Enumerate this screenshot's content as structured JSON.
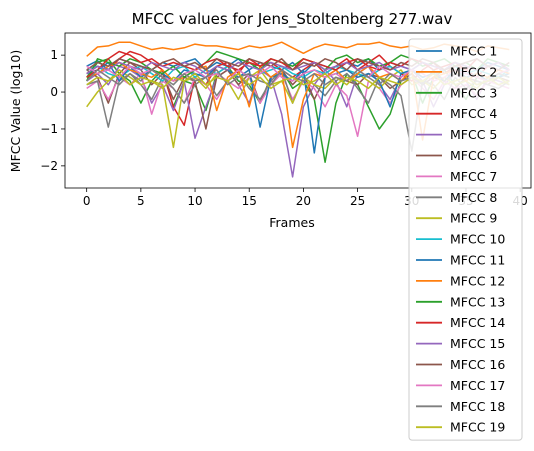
{
  "chart_data": {
    "type": "line",
    "title": "MFCC values for Jens_Stoltenberg 277.wav",
    "xlabel": "Frames",
    "ylabel": "MFCC Value (log10)",
    "xlim": [
      -2,
      41
    ],
    "ylim": [
      -2.6,
      1.6
    ],
    "xticks": [
      0,
      5,
      10,
      15,
      20,
      25,
      30,
      35,
      40
    ],
    "yticks": [
      -2,
      -1,
      0,
      1
    ],
    "grid": false,
    "legend_position": "right",
    "x": [
      0,
      1,
      2,
      3,
      4,
      5,
      6,
      7,
      8,
      9,
      10,
      11,
      12,
      13,
      14,
      15,
      16,
      17,
      18,
      19,
      20,
      21,
      22,
      23,
      24,
      25,
      26,
      27,
      28,
      29,
      30,
      31,
      32,
      33,
      34,
      35,
      36,
      37,
      38,
      39
    ],
    "series": [
      {
        "name": "MFCC 1",
        "color": "#1f77b4",
        "values": [
          0.7,
          0.85,
          0.6,
          0.9,
          0.8,
          0.7,
          0.6,
          0.8,
          0.7,
          0.8,
          0.9,
          0.6,
          0.8,
          0.7,
          0.9,
          0.6,
          0.8,
          0.7,
          0.6,
          0.8,
          0.5,
          0.8,
          0.7,
          0.6,
          0.8,
          0.7,
          0.9,
          0.6,
          0.8,
          0.7,
          0.6,
          0.8,
          0.7,
          0.6,
          0.8,
          0.7,
          0.6,
          0.8,
          0.7,
          0.6
        ]
      },
      {
        "name": "MFCC 2",
        "color": "#ff7f0e",
        "values": [
          0.97,
          1.22,
          1.25,
          1.35,
          1.35,
          1.25,
          1.15,
          1.2,
          1.15,
          1.2,
          1.3,
          1.25,
          1.25,
          1.2,
          1.15,
          1.25,
          1.2,
          1.25,
          1.35,
          1.2,
          1.05,
          1.2,
          1.3,
          1.25,
          1.2,
          1.3,
          1.3,
          1.35,
          1.25,
          1.2,
          1.25,
          1.15,
          1.2,
          1.3,
          1.25,
          1.2,
          1.1,
          1.25,
          1.2,
          1.15
        ]
      },
      {
        "name": "MFCC 3",
        "color": "#2ca02c",
        "values": [
          0.4,
          0.8,
          0.9,
          0.5,
          0.3,
          -0.3,
          0.3,
          0.6,
          -0.4,
          0.3,
          0.2,
          -0.5,
          0.5,
          0.7,
          0.3,
          0.2,
          -0.3,
          0.4,
          0.6,
          0.1,
          0.3,
          -0.2,
          -1.9,
          -0.3,
          0.5,
          0.2,
          -0.4,
          -1.0,
          -0.6,
          0.3,
          0.5,
          -0.3,
          0.4,
          0.6,
          0.2,
          -0.2,
          0.4,
          0.3,
          0.5,
          0.4
        ]
      },
      {
        "name": "MFCC 4",
        "color": "#d62728",
        "values": [
          0.5,
          0.7,
          0.6,
          0.9,
          1.1,
          1.0,
          0.8,
          0.6,
          -0.4,
          -0.9,
          0.4,
          0.2,
          0.7,
          0.8,
          0.5,
          0.9,
          0.7,
          0.8,
          0.6,
          0.4,
          0.6,
          0.8,
          0.5,
          0.7,
          0.9,
          0.6,
          0.8,
          1.0,
          0.7,
          0.5,
          0.3,
          0.6,
          0.8,
          0.5,
          0.7,
          0.6,
          0.4,
          0.7,
          0.6,
          0.5
        ]
      },
      {
        "name": "MFCC 5",
        "color": "#9467bd",
        "values": [
          0.3,
          0.5,
          0.2,
          0.7,
          0.6,
          0.4,
          -0.3,
          0.2,
          -0.5,
          0.3,
          -1.25,
          -0.4,
          0.4,
          0.6,
          0.2,
          -0.3,
          0.6,
          0.4,
          -0.6,
          -2.3,
          -0.4,
          0.2,
          0.6,
          0.3,
          -0.4,
          0.5,
          0.7,
          0.2,
          -0.2,
          0.4,
          0.6,
          0.3,
          -0.4,
          0.2,
          0.5,
          0.3,
          -0.2,
          0.4,
          0.3,
          0.2
        ]
      },
      {
        "name": "MFCC 6",
        "color": "#8c564b",
        "values": [
          0.6,
          0.4,
          -0.3,
          0.5,
          0.8,
          0.6,
          0.2,
          0.5,
          -0.2,
          0.4,
          0.3,
          -1.0,
          0.4,
          0.6,
          0.2,
          0.5,
          -0.3,
          0.4,
          0.6,
          0.2,
          0.5,
          -0.2,
          0.4,
          0.6,
          0.3,
          0.2,
          0.5,
          0.4,
          0.1,
          0.3,
          0.5,
          0.2,
          0.4,
          0.3,
          0.1,
          0.4,
          0.3,
          0.2,
          0.4,
          0.3
        ]
      },
      {
        "name": "MFCC 7",
        "color": "#e377c2",
        "values": [
          0.1,
          0.3,
          -0.2,
          0.4,
          0.2,
          0.5,
          -0.6,
          0.3,
          0.1,
          -0.3,
          0.4,
          0.2,
          -0.2,
          0.3,
          0.1,
          0.4,
          -0.3,
          0.2,
          0.5,
          -0.2,
          0.3,
          0.1,
          -0.4,
          0.2,
          -0.1,
          -1.2,
          0.3,
          0.1,
          -0.3,
          0.2,
          0.4,
          0.1,
          -0.2,
          0.3,
          0.1,
          0.2,
          -0.1,
          0.3,
          0.2,
          0.1
        ]
      },
      {
        "name": "MFCC 8",
        "color": "#7f7f7f",
        "values": [
          0.2,
          0.3,
          -0.95,
          0.3,
          0.5,
          0.2,
          -0.2,
          0.4,
          0.1,
          -0.3,
          0.2,
          0.4,
          -0.1,
          0.3,
          0.5,
          0.1,
          -0.2,
          0.3,
          0.6,
          -0.3,
          0.4,
          0.2,
          -0.1,
          0.3,
          0.5,
          0.1,
          -0.3,
          0.4,
          0.2,
          -0.1,
          -1.6,
          0.3,
          0.2,
          -0.2,
          0.4,
          0.1,
          0.3,
          0.2,
          0.1,
          0.3
        ]
      },
      {
        "name": "MFCC 9",
        "color": "#bcbd22",
        "values": [
          -0.4,
          0.0,
          0.3,
          0.6,
          0.4,
          0.2,
          0.3,
          0.2,
          -1.5,
          0.3,
          0.4,
          0.1,
          0.5,
          0.3,
          -0.2,
          0.4,
          0.6,
          0.2,
          0.3,
          -0.3,
          0.4,
          0.2,
          0.1,
          0.4,
          0.2,
          0.5,
          0.3,
          0.1,
          0.4,
          0.6,
          0.2,
          0.3,
          0.1,
          0.4,
          0.2,
          0.3,
          0.1,
          0.4,
          0.2,
          0.3
        ]
      },
      {
        "name": "MFCC 10",
        "color": "#17becf",
        "values": [
          0.6,
          0.7,
          0.5,
          0.4,
          0.6,
          0.7,
          0.5,
          0.3,
          0.6,
          0.7,
          0.4,
          0.6,
          0.5,
          0.7,
          0.6,
          0.4,
          0.5,
          0.6,
          0.7,
          0.5,
          0.4,
          0.6,
          0.5,
          0.7,
          0.6,
          0.5,
          0.4,
          0.6,
          0.7,
          0.5,
          0.6,
          0.4,
          0.5,
          0.6,
          0.7,
          0.5,
          0.6,
          0.5,
          0.4,
          0.6
        ]
      },
      {
        "name": "MFCC 11",
        "color": "#1f77b4",
        "values": [
          0.5,
          0.6,
          0.8,
          0.3,
          0.7,
          0.4,
          0.6,
          0.5,
          0.3,
          0.6,
          0.5,
          0.4,
          0.7,
          0.6,
          0.4,
          0.6,
          -0.95,
          0.4,
          0.5,
          0.3,
          0.6,
          -1.65,
          0.4,
          0.5,
          0.6,
          0.4,
          0.5,
          0.3,
          -0.4,
          0.5,
          0.6,
          0.4,
          0.5,
          0.3,
          0.6,
          0.4,
          0.5,
          0.3,
          0.4,
          0.5
        ]
      },
      {
        "name": "MFCC 12",
        "color": "#ff7f0e",
        "values": [
          0.4,
          0.5,
          0.7,
          0.8,
          0.6,
          0.5,
          0.4,
          0.6,
          0.3,
          0.4,
          0.6,
          0.7,
          -0.5,
          0.4,
          0.6,
          -0.4,
          0.7,
          0.4,
          0.6,
          -1.5,
          -0.2,
          0.5,
          0.4,
          0.6,
          0.3,
          0.5,
          0.7,
          0.4,
          0.5,
          0.3,
          0.6,
          -1.3,
          0.4,
          0.5,
          0.6,
          0.3,
          0.5,
          0.4,
          0.6,
          0.5
        ]
      },
      {
        "name": "MFCC 13",
        "color": "#2ca02c",
        "values": [
          0.3,
          0.9,
          0.8,
          0.7,
          0.9,
          0.8,
          0.6,
          0.5,
          0.7,
          0.4,
          0.6,
          0.8,
          1.1,
          1.0,
          0.9,
          0.8,
          0.6,
          0.9,
          0.8,
          0.7,
          0.9,
          0.8,
          0.6,
          0.9,
          1.0,
          0.8,
          0.9,
          0.7,
          0.8,
          1.0,
          0.9,
          0.7,
          0.8,
          0.9,
          0.7,
          0.8,
          0.6,
          0.9,
          0.8,
          0.7
        ]
      },
      {
        "name": "MFCC 14",
        "color": "#d62728",
        "values": [
          0.4,
          0.6,
          0.9,
          1.1,
          1.0,
          0.8,
          0.9,
          0.7,
          0.8,
          0.7,
          0.6,
          0.8,
          0.9,
          0.7,
          0.6,
          0.8,
          0.7,
          0.9,
          0.8,
          0.6,
          0.9,
          0.8,
          0.7,
          0.6,
          0.8,
          0.9,
          0.7,
          0.6,
          0.8,
          0.7,
          0.9,
          0.8,
          0.6,
          0.7,
          0.8,
          0.6,
          0.9,
          0.7,
          0.8,
          0.6
        ]
      },
      {
        "name": "MFCC 15",
        "color": "#9467bd",
        "values": [
          0.5,
          0.7,
          0.6,
          0.8,
          0.7,
          0.6,
          0.8,
          0.7,
          0.6,
          0.8,
          0.7,
          0.5,
          0.7,
          0.6,
          0.8,
          0.7,
          0.6,
          0.8,
          0.7,
          0.6,
          0.7,
          0.8,
          0.6,
          0.7,
          0.8,
          0.6,
          0.7,
          0.8,
          0.6,
          0.7,
          0.6,
          0.8,
          0.7,
          0.6,
          0.8,
          0.7,
          0.6,
          0.7,
          0.8,
          0.6
        ]
      },
      {
        "name": "MFCC 16",
        "color": "#8c564b",
        "values": [
          0.6,
          0.8,
          0.7,
          0.9,
          0.8,
          0.7,
          0.6,
          0.8,
          0.9,
          0.7,
          0.8,
          0.6,
          0.9,
          0.8,
          0.7,
          0.9,
          0.8,
          0.7,
          0.9,
          0.6,
          0.8,
          0.7,
          0.9,
          0.8,
          0.6,
          0.9,
          0.8,
          0.7,
          0.6,
          0.8,
          0.7,
          0.9,
          0.8,
          0.6,
          0.7,
          0.8,
          0.9,
          0.7,
          0.6,
          0.8
        ]
      },
      {
        "name": "MFCC 17",
        "color": "#e377c2",
        "values": [
          0.7,
          0.5,
          0.6,
          0.4,
          0.7,
          0.5,
          0.6,
          0.4,
          0.3,
          0.5,
          0.6,
          0.4,
          0.5,
          0.3,
          0.6,
          0.4,
          0.5,
          0.7,
          0.4,
          0.3,
          0.5,
          0.6,
          0.4,
          0.5,
          0.3,
          0.6,
          0.4,
          0.7,
          0.5,
          0.4,
          0.6,
          0.5,
          0.3,
          0.4,
          0.6,
          0.5,
          0.4,
          0.3,
          0.5,
          0.6
        ]
      },
      {
        "name": "MFCC 18",
        "color": "#7f7f7f",
        "values": [
          0.3,
          0.6,
          0.4,
          0.2,
          0.5,
          0.3,
          0.6,
          0.4,
          0.2,
          0.5,
          0.3,
          0.4,
          0.6,
          0.2,
          0.4,
          0.5,
          0.3,
          0.2,
          0.6,
          0.4,
          0.3,
          0.5,
          0.2,
          0.4,
          0.3,
          0.6,
          0.4,
          0.2,
          0.5,
          0.3,
          0.4,
          0.2,
          0.6,
          0.3,
          0.5,
          0.4,
          0.2,
          0.3,
          0.5,
          0.4
        ]
      },
      {
        "name": "MFCC 19",
        "color": "#bcbd22",
        "values": [
          0.2,
          0.4,
          0.3,
          0.5,
          0.2,
          0.4,
          0.3,
          0.1,
          0.4,
          0.3,
          0.5,
          0.2,
          0.4,
          0.3,
          0.5,
          0.2,
          0.4,
          0.1,
          0.3,
          0.4,
          0.2,
          0.3,
          0.5,
          0.2,
          0.4,
          0.3,
          0.1,
          0.4,
          0.3,
          0.2,
          0.4,
          0.3,
          0.5,
          0.2,
          0.3,
          0.4,
          0.2,
          0.3,
          0.4,
          0.2
        ]
      }
    ]
  }
}
